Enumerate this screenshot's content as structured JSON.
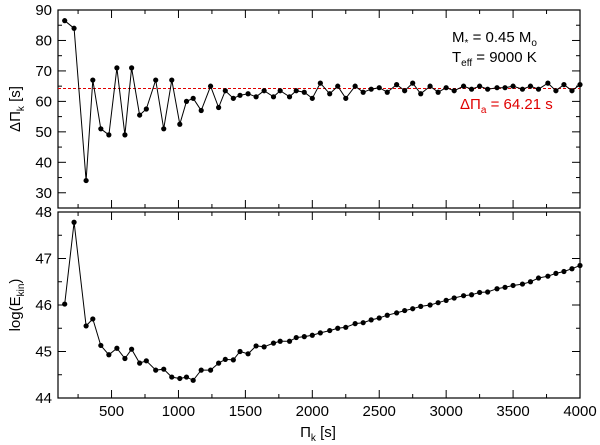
{
  "chart_data": [
    {
      "type": "line",
      "panel": "top",
      "ylabel_main": "ΔΠ",
      "ylabel_sub": "k",
      "ylabel_unit": " [s]",
      "ylim": [
        25,
        90
      ],
      "xlim": [
        100,
        4000
      ],
      "yticks": [
        30,
        40,
        50,
        60,
        70,
        80,
        90
      ],
      "xticks": [
        500,
        1000,
        1500,
        2000,
        2500,
        3000,
        3500,
        4000
      ],
      "reference_line": {
        "value": 64.21,
        "color": "#e00000",
        "style": "dashed"
      },
      "annotation_mass": {
        "prefix": "M",
        "sub": "*",
        "value": " = 0.45 M",
        "unit_sub": "o"
      },
      "annotation_teff": {
        "prefix": "T",
        "sub": "eff",
        "value": " = 9000 K"
      },
      "annotation_ref": {
        "prefix": "ΔΠ",
        "sub": "a",
        "value": " = 64.21 s"
      },
      "x": [
        150,
        220,
        310,
        360,
        420,
        480,
        540,
        600,
        650,
        710,
        760,
        830,
        890,
        950,
        1010,
        1060,
        1110,
        1170,
        1240,
        1300,
        1350,
        1410,
        1460,
        1520,
        1580,
        1640,
        1710,
        1760,
        1830,
        1880,
        1940,
        2000,
        2060,
        2130,
        2190,
        2250,
        2320,
        2380,
        2440,
        2500,
        2560,
        2630,
        2690,
        2750,
        2810,
        2880,
        2940,
        3000,
        3060,
        3130,
        3190,
        3250,
        3310,
        3380,
        3440,
        3500,
        3570,
        3630,
        3690,
        3760,
        3820,
        3880,
        3940,
        4000
      ],
      "y": [
        86.5,
        84,
        34,
        67,
        51,
        49,
        71,
        49,
        71,
        55.5,
        57.5,
        67,
        51,
        67,
        52.5,
        60,
        61,
        57,
        65,
        58,
        63.5,
        61,
        62,
        62.5,
        61.5,
        63.5,
        61.5,
        63.5,
        61.5,
        63.5,
        63,
        61,
        66,
        62.5,
        65,
        61,
        65,
        63,
        64,
        64.5,
        63,
        65.5,
        63.5,
        66,
        62.5,
        65,
        63,
        64.5,
        63.5,
        65,
        64,
        65,
        64,
        64.5,
        64.5,
        65,
        64,
        65,
        64,
        66,
        63.5,
        65.5,
        63.5,
        65.5
      ]
    },
    {
      "type": "line",
      "panel": "bottom",
      "ylabel_main": "log(E",
      "ylabel_sub": "kin",
      "ylabel_unit": ")",
      "xlabel_main": "Π",
      "xlabel_sub": "k",
      "xlabel_unit": " [s]",
      "ylim": [
        44,
        48
      ],
      "xlim": [
        100,
        4000
      ],
      "yticks": [
        44,
        45,
        46,
        47,
        48
      ],
      "xticks": [
        500,
        1000,
        1500,
        2000,
        2500,
        3000,
        3500,
        4000
      ],
      "xticklabels": [
        "500",
        "1000",
        "1500",
        "2000",
        "2500",
        "3000",
        "3500",
        "4000"
      ],
      "x": [
        150,
        220,
        310,
        360,
        420,
        480,
        540,
        600,
        650,
        710,
        760,
        830,
        890,
        950,
        1010,
        1060,
        1110,
        1170,
        1240,
        1300,
        1350,
        1410,
        1460,
        1520,
        1580,
        1640,
        1710,
        1760,
        1830,
        1880,
        1940,
        2000,
        2060,
        2130,
        2190,
        2250,
        2320,
        2380,
        2440,
        2500,
        2560,
        2630,
        2690,
        2750,
        2810,
        2880,
        2940,
        3000,
        3060,
        3130,
        3190,
        3250,
        3310,
        3380,
        3440,
        3500,
        3570,
        3630,
        3690,
        3760,
        3820,
        3880,
        3940,
        4000
      ],
      "y": [
        46.02,
        47.78,
        45.55,
        45.7,
        45.13,
        44.93,
        45.07,
        44.85,
        45.05,
        44.75,
        44.8,
        44.6,
        44.62,
        44.45,
        44.42,
        44.45,
        44.38,
        44.6,
        44.6,
        44.75,
        44.83,
        44.82,
        45.0,
        44.95,
        45.12,
        45.1,
        45.18,
        45.22,
        45.22,
        45.3,
        45.32,
        45.35,
        45.4,
        45.45,
        45.5,
        45.52,
        45.6,
        45.62,
        45.68,
        45.72,
        45.78,
        45.83,
        45.88,
        45.92,
        45.97,
        46.0,
        46.05,
        46.1,
        46.15,
        46.2,
        46.22,
        46.27,
        46.28,
        46.35,
        46.38,
        46.42,
        46.45,
        46.5,
        46.58,
        46.62,
        46.68,
        46.72,
        46.78,
        46.85
      ]
    }
  ]
}
